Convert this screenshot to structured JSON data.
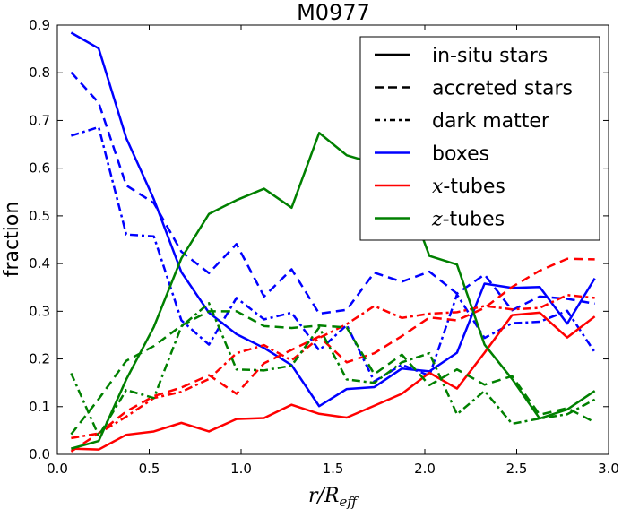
{
  "chart_data": {
    "type": "line",
    "title": "M0977",
    "xlabel": "r/R_eff",
    "ylabel": "fraction",
    "xlim": [
      0.0,
      3.0
    ],
    "ylim": [
      0.0,
      0.9
    ],
    "xticks": [
      "0.0",
      "0.5",
      "1.0",
      "1.5",
      "2.0",
      "2.5",
      "3.0"
    ],
    "yticks": [
      "0.0",
      "0.1",
      "0.2",
      "0.3",
      "0.4",
      "0.5",
      "0.6",
      "0.7",
      "0.8",
      "0.9"
    ],
    "grid": false,
    "legend_position": "top-right",
    "legend": [
      {
        "label": "in-situ stars",
        "style": "solid",
        "color": "#000000"
      },
      {
        "label": "accreted stars",
        "style": "dashed",
        "color": "#000000"
      },
      {
        "label": "dark matter",
        "style": "dashdot",
        "color": "#000000"
      },
      {
        "label": "boxes",
        "style": "solid",
        "color": "#0000ff"
      },
      {
        "label": "x-tubes",
        "style": "solid",
        "color": "#ff0000",
        "math": "x",
        "suffix": "-tubes"
      },
      {
        "label": "z-tubes",
        "style": "solid",
        "color": "#008000",
        "math": "z",
        "suffix": "-tubes"
      }
    ],
    "x": [
      0.075,
      0.225,
      0.375,
      0.525,
      0.675,
      0.825,
      0.975,
      1.125,
      1.275,
      1.425,
      1.575,
      1.725,
      1.875,
      2.025,
      2.175,
      2.325,
      2.475,
      2.625,
      2.775,
      2.925
    ],
    "series": [
      {
        "name": "boxes in-situ stars",
        "color": "#0000ff",
        "style": "solid",
        "values": [
          0.884,
          0.851,
          0.663,
          0.535,
          0.382,
          0.297,
          0.252,
          0.223,
          0.187,
          0.101,
          0.137,
          0.141,
          0.18,
          0.174,
          0.213,
          0.358,
          0.349,
          0.351,
          0.274,
          0.369
        ]
      },
      {
        "name": "boxes accreted stars",
        "color": "#0000ff",
        "style": "dashed",
        "values": [
          0.801,
          0.737,
          0.564,
          0.527,
          0.425,
          0.38,
          0.441,
          0.331,
          0.388,
          0.295,
          0.303,
          0.381,
          0.362,
          0.383,
          0.337,
          0.377,
          0.302,
          0.331,
          0.326,
          0.316
        ]
      },
      {
        "name": "boxes dark matter",
        "color": "#0000ff",
        "style": "dashdot",
        "values": [
          0.668,
          0.686,
          0.461,
          0.457,
          0.281,
          0.23,
          0.328,
          0.283,
          0.297,
          0.218,
          0.271,
          0.153,
          0.188,
          0.165,
          0.335,
          0.244,
          0.275,
          0.278,
          0.301,
          0.214
        ]
      },
      {
        "name": "x-tubes in-situ stars",
        "color": "#ff0000",
        "style": "solid",
        "values": [
          0.012,
          0.01,
          0.041,
          0.048,
          0.066,
          0.048,
          0.074,
          0.076,
          0.104,
          0.085,
          0.077,
          0.102,
          0.127,
          0.171,
          0.138,
          0.213,
          0.292,
          0.297,
          0.245,
          0.289
        ]
      },
      {
        "name": "x-tubes accreted stars",
        "color": "#ff0000",
        "style": "dashed",
        "values": [
          0.006,
          0.044,
          0.09,
          0.122,
          0.14,
          0.166,
          0.127,
          0.191,
          0.219,
          0.247,
          0.193,
          0.212,
          0.248,
          0.287,
          0.281,
          0.307,
          0.351,
          0.385,
          0.41,
          0.409
        ]
      },
      {
        "name": "x-tubes dark matter",
        "color": "#ff0000",
        "style": "dashdot",
        "values": [
          0.034,
          0.044,
          0.079,
          0.118,
          0.131,
          0.158,
          0.212,
          0.229,
          0.197,
          0.244,
          0.273,
          0.311,
          0.286,
          0.295,
          0.298,
          0.311,
          0.304,
          0.307,
          0.334,
          0.328
        ]
      },
      {
        "name": "z-tubes in-situ stars",
        "color": "#008000",
        "style": "solid",
        "values": [
          0.012,
          0.028,
          0.157,
          0.267,
          0.411,
          0.504,
          0.533,
          0.557,
          0.517,
          0.674,
          0.627,
          0.61,
          0.572,
          0.416,
          0.398,
          0.23,
          0.158,
          0.075,
          0.094,
          0.133
        ]
      },
      {
        "name": "z-tubes accreted stars",
        "color": "#008000",
        "style": "dashed",
        "values": [
          0.042,
          0.116,
          0.196,
          0.227,
          0.27,
          0.3,
          0.3,
          0.269,
          0.265,
          0.27,
          0.266,
          0.168,
          0.209,
          0.145,
          0.178,
          0.146,
          0.164,
          0.083,
          0.097,
          0.067
        ]
      },
      {
        "name": "z-tubes dark matter",
        "color": "#008000",
        "style": "dashdot",
        "values": [
          0.17,
          0.039,
          0.135,
          0.118,
          0.268,
          0.317,
          0.178,
          0.176,
          0.186,
          0.266,
          0.157,
          0.15,
          0.193,
          0.212,
          0.084,
          0.133,
          0.064,
          0.075,
          0.084,
          0.115
        ]
      }
    ]
  }
}
